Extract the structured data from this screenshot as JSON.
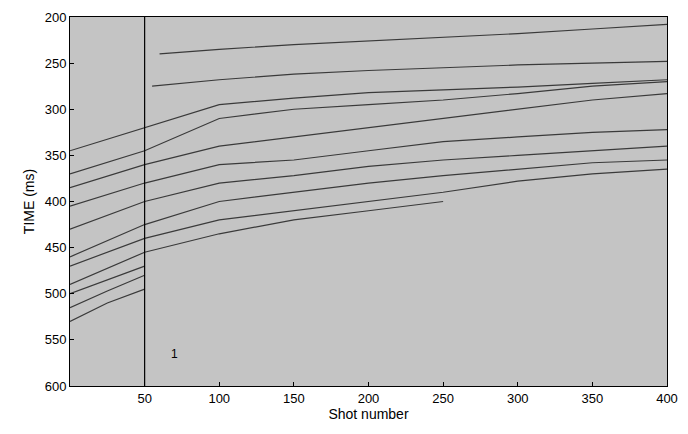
{
  "chart_data": {
    "type": "line",
    "x_label": "Shot number",
    "y_label": "TIME (ms)",
    "xlim": [
      0,
      400
    ],
    "ylim": [
      600,
      200
    ],
    "xticks": [
      50,
      100,
      150,
      200,
      250,
      300,
      350,
      400
    ],
    "yticks": [
      200,
      250,
      300,
      350,
      400,
      450,
      500,
      550,
      600
    ],
    "grid": false,
    "series": [
      {
        "color": "#3a3a3a",
        "x": [
          60,
          100,
          150,
          200,
          250,
          300,
          350,
          400
        ],
        "values": [
          240,
          235,
          230,
          226,
          222,
          218,
          213,
          208
        ]
      },
      {
        "color": "#3a3a3a",
        "x": [
          55,
          100,
          150,
          200,
          250,
          300,
          350,
          400
        ],
        "values": [
          275,
          268,
          262,
          258,
          255,
          252,
          250,
          248
        ]
      },
      {
        "color": "#3a3a3a",
        "x": [
          0,
          50,
          100,
          150,
          200,
          250,
          300,
          350,
          400
        ],
        "values": [
          345,
          320,
          295,
          288,
          282,
          279,
          276,
          272,
          268
        ]
      },
      {
        "color": "#3a3a3a",
        "x": [
          0,
          50,
          100,
          150,
          200,
          250,
          300,
          350,
          400
        ],
        "values": [
          370,
          345,
          310,
          300,
          295,
          290,
          283,
          275,
          270
        ]
      },
      {
        "color": "#3a3a3a",
        "x": [
          0,
          50,
          100,
          150,
          200,
          250,
          300,
          350,
          400
        ],
        "values": [
          385,
          360,
          340,
          330,
          320,
          310,
          300,
          290,
          283
        ]
      },
      {
        "color": "#3a3a3a",
        "x": [
          0,
          50,
          100,
          150,
          200,
          250,
          300,
          350,
          400
        ],
        "values": [
          405,
          380,
          360,
          355,
          345,
          335,
          330,
          325,
          322
        ]
      },
      {
        "color": "#3a3a3a",
        "x": [
          0,
          50,
          100,
          150,
          200,
          250,
          300,
          350,
          400
        ],
        "values": [
          430,
          400,
          380,
          372,
          362,
          355,
          350,
          345,
          340
        ]
      },
      {
        "color": "#3a3a3a",
        "x": [
          0,
          50,
          100,
          150,
          200,
          250,
          300,
          350,
          400
        ],
        "values": [
          460,
          425,
          400,
          390,
          380,
          372,
          365,
          358,
          355
        ]
      },
      {
        "color": "#3a3a3a",
        "x": [
          0,
          50,
          100,
          150,
          200,
          250,
          300,
          350,
          400
        ],
        "values": [
          470,
          440,
          420,
          410,
          400,
          390,
          378,
          370,
          365
        ]
      },
      {
        "color": "#3a3a3a",
        "x": [
          0,
          50,
          100,
          150,
          200,
          250
        ],
        "values": [
          490,
          455,
          435,
          420,
          410,
          400
        ]
      },
      {
        "color": "#3a3a3a",
        "x": [
          0,
          25,
          50
        ],
        "values": [
          500,
          485,
          470
        ]
      },
      {
        "color": "#3a3a3a",
        "x": [
          0,
          25,
          50
        ],
        "values": [
          515,
          497,
          480
        ]
      },
      {
        "color": "#3a3a3a",
        "x": [
          0,
          25,
          50
        ],
        "values": [
          530,
          510,
          495
        ]
      },
      {
        "color": "#000000",
        "x": [
          50,
          50
        ],
        "values": [
          200,
          600
        ]
      }
    ],
    "annotations": [
      {
        "text": "1",
        "x": 70,
        "y": 565
      }
    ]
  }
}
